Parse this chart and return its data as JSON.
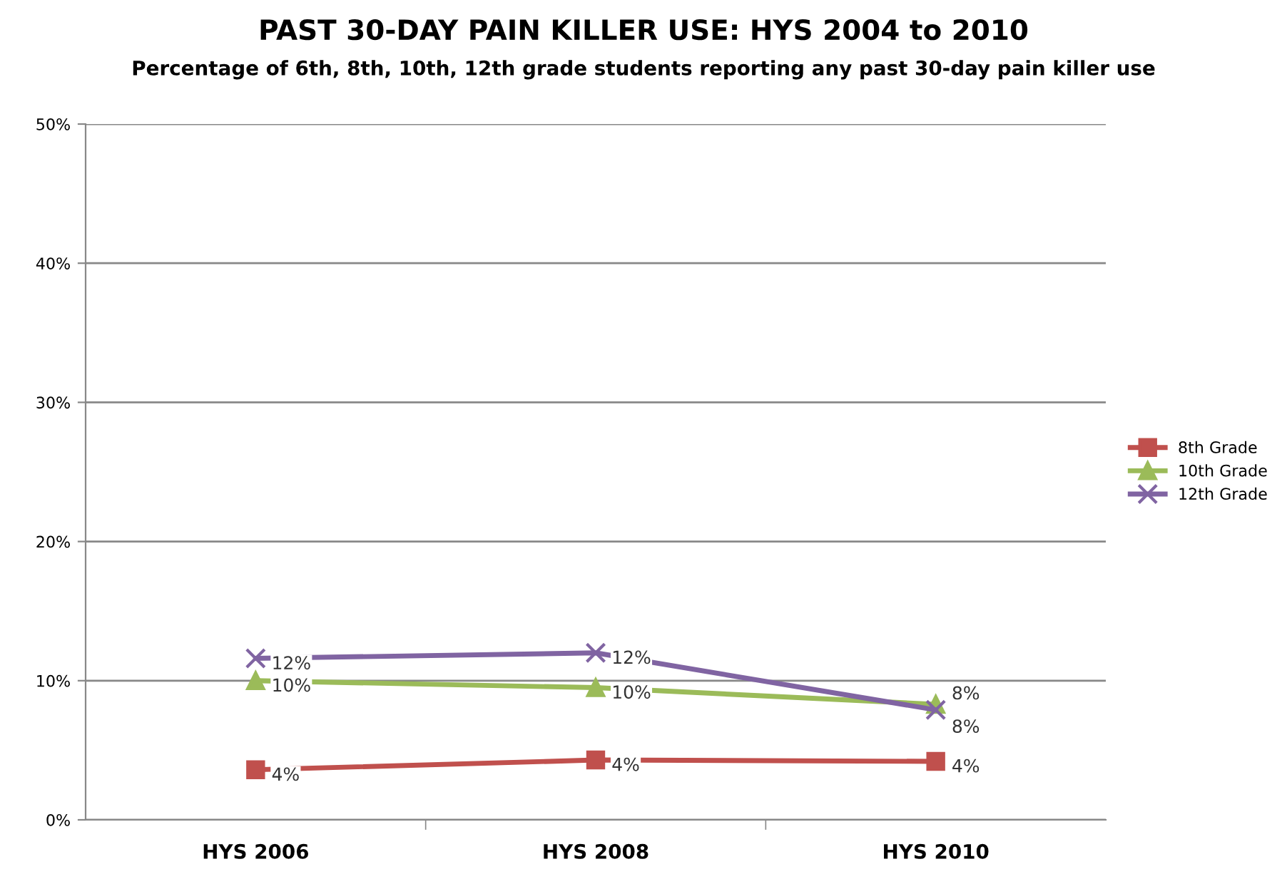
{
  "chart_data": {
    "type": "line",
    "title": "PAST 30-DAY PAIN KILLER USE: HYS 2004 to 2010",
    "subtitle": "Percentage of 6th, 8th, 10th, 12th grade students reporting any past 30-day pain killer use",
    "categories": [
      "HYS 2006",
      "HYS 2008",
      "HYS 2010"
    ],
    "series": [
      {
        "name": "8th Grade",
        "color": "#c0504d",
        "marker": "square",
        "values": [
          3.6,
          4.3,
          4.2
        ],
        "value_labels": [
          "4%",
          "4%",
          "4%"
        ]
      },
      {
        "name": "10th Grade",
        "color": "#9bbb59",
        "marker": "triangle",
        "values": [
          10.0,
          9.5,
          8.3
        ],
        "value_labels": [
          "10%",
          "10%",
          "8%"
        ]
      },
      {
        "name": "12th Grade",
        "color": "#8064a2",
        "marker": "cross",
        "values": [
          11.6,
          12.0,
          7.9
        ],
        "value_labels": [
          "12%",
          "12%",
          "8%"
        ]
      }
    ],
    "ylim": [
      0,
      50
    ],
    "yticks": [
      {
        "value": 0,
        "label": "0%"
      },
      {
        "value": 10,
        "label": "10%"
      },
      {
        "value": 20,
        "label": "20%"
      },
      {
        "value": 30,
        "label": "30%"
      },
      {
        "value": 40,
        "label": "40%"
      },
      {
        "value": 50,
        "label": "50%"
      }
    ],
    "grid": "y",
    "legend": "right",
    "line_style": "solid"
  }
}
